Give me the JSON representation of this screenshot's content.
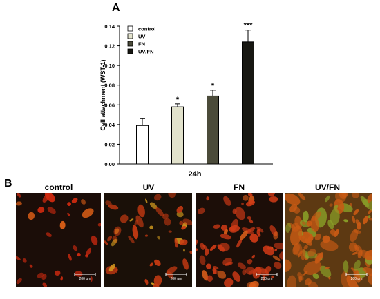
{
  "panel_a_letter": "A",
  "panel_b_letter": "B",
  "chart_data": {
    "type": "bar",
    "title": "",
    "xlabel": "24h",
    "ylabel": "Cell attachment (WST-1)",
    "ylim": [
      0,
      0.14
    ],
    "yticks": [
      "0.00",
      "0.02",
      "0.04",
      "0.06",
      "0.08",
      "0.10",
      "0.12",
      "0.14"
    ],
    "legend_position": "top-left",
    "series": [
      {
        "name": "control",
        "value": 0.039,
        "error": 0.007,
        "significance": "",
        "color": "#ffffff"
      },
      {
        "name": "UV",
        "value": 0.058,
        "error": 0.003,
        "significance": "*",
        "color": "#e2e2cc"
      },
      {
        "name": "FN",
        "value": 0.069,
        "error": 0.006,
        "significance": "*",
        "color": "#4b4b3a"
      },
      {
        "name": "UV/FN",
        "value": 0.124,
        "error": 0.012,
        "significance": "***",
        "color": "#171712"
      }
    ]
  },
  "micrographs": [
    {
      "label": "control",
      "scale_bar": "200 μm",
      "bg": "#1b0d08",
      "cell": "#d52b10",
      "accent": "#e86418",
      "density": 0.45
    },
    {
      "label": "UV",
      "scale_bar": "200 μm",
      "bg": "#1a1008",
      "cell": "#c83a12",
      "accent": "#d8a020",
      "density": 0.7
    },
    {
      "label": "FN",
      "scale_bar": "200 μm",
      "bg": "#1c0e08",
      "cell": "#d03a16",
      "accent": "#e0601a",
      "density": 1.05
    },
    {
      "label": "UV/FN",
      "scale_bar": "200 μm",
      "bg": "#3a2410",
      "cell": "#c85a14",
      "accent": "#8aa028",
      "density": 1.4
    }
  ]
}
